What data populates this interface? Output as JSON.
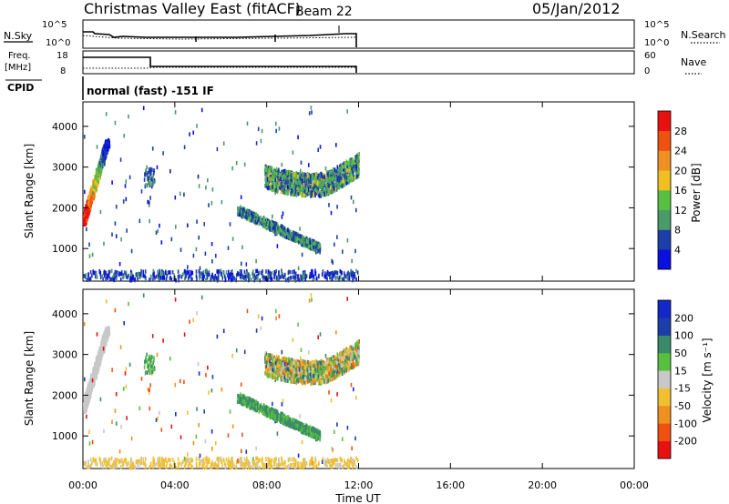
{
  "header": {
    "title": "Christmas Valley East (fitACF)",
    "beam": "Beam 22",
    "date": "05/Jan/2012"
  },
  "panels": {
    "nsky": {
      "label": "N.Sky",
      "ticks": [
        "10^5",
        "10^0"
      ],
      "right_ticks": [
        "10^5",
        "10^0"
      ],
      "right_label": "N.Search"
    },
    "freq": {
      "label_top": "Freq.",
      "label_bottom": "[MHz]",
      "ticks": [
        "18",
        "8"
      ],
      "right_ticks": [
        "60",
        "0"
      ],
      "right_label": "Nave"
    },
    "cpid": {
      "label": "CPID",
      "text": "normal (fast) -151 IF"
    }
  },
  "colors": {
    "power": [
      "#0a10e0",
      "#1c3ea8",
      "#4a9a6a",
      "#58c040",
      "#f0c020",
      "#f09020",
      "#f05010",
      "#e81010"
    ],
    "velocity": [
      "#e81010",
      "#f05010",
      "#f09020",
      "#f0c030",
      "#c8c8c8",
      "#58c040",
      "#3a8a6a",
      "#1c3ea8",
      "#1428c8"
    ]
  },
  "chart_data": [
    {
      "type": "heatmap",
      "quantity": "power",
      "ylabel": "Slant Range [km]",
      "yticks": [
        1000,
        2000,
        3000,
        4000
      ],
      "ylim": [
        200,
        4600
      ],
      "xlim": [
        0,
        24
      ],
      "colorbar": {
        "label": "Power [dB]",
        "ticks": [
          "28",
          "24",
          "20",
          "16",
          "12",
          "8",
          "4"
        ]
      }
    },
    {
      "type": "heatmap",
      "quantity": "velocity",
      "ylabel": "Slant Range [km]",
      "yticks": [
        1000,
        2000,
        3000,
        4000
      ],
      "ylim": [
        200,
        4600
      ],
      "xlim": [
        0,
        24
      ],
      "xlabel": "Time UT",
      "xticks": [
        "00:00",
        "04:00",
        "08:00",
        "12:00",
        "16:00",
        "20:00",
        "00:00"
      ],
      "colorbar": {
        "label": "Velocity [m s⁻¹]",
        "ticks": [
          "200",
          "100",
          "50",
          "15",
          "-15",
          "-50",
          "-100",
          "-200"
        ]
      }
    }
  ]
}
